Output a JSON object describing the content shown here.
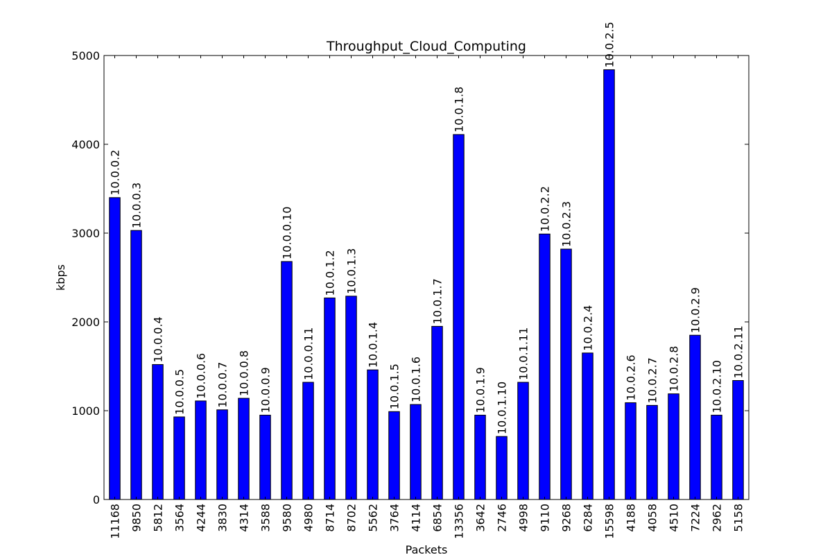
{
  "chart_data": {
    "type": "bar",
    "title": "Throughput_Cloud_Computing",
    "xlabel": "Packets",
    "ylabel": "kbps",
    "ylim": [
      0,
      5000
    ],
    "yticks": [
      0,
      1000,
      2000,
      3000,
      4000,
      5000
    ],
    "grid": false,
    "legend": "none",
    "bar_color": "#0000ff",
    "categories": [
      "11168",
      "9850",
      "5812",
      "3564",
      "4244",
      "3830",
      "4314",
      "3588",
      "9580",
      "4980",
      "8714",
      "8702",
      "5562",
      "3764",
      "4114",
      "6854",
      "13356",
      "3642",
      "2746",
      "4998",
      "9110",
      "9268",
      "6284",
      "15598",
      "4188",
      "4058",
      "4510",
      "7224",
      "2962",
      "5158"
    ],
    "labels": [
      "10.0.0.2",
      "10.0.0.3",
      "10.0.0.4",
      "10.0.0.5",
      "10.0.0.6",
      "10.0.0.7",
      "10.0.0.8",
      "10.0.0.9",
      "10.0.0.10",
      "10.0.0.11",
      "10.0.1.2",
      "10.0.1.3",
      "10.0.1.4",
      "10.0.1.5",
      "10.0.1.6",
      "10.0.1.7",
      "10.0.1.8",
      "10.0.1.9",
      "10.0.1.10",
      "10.0.1.11",
      "10.0.2.2",
      "10.0.2.3",
      "10.0.2.4",
      "10.0.2.5",
      "10.0.2.6",
      "10.0.2.7",
      "10.0.2.8",
      "10.0.2.9",
      "10.0.2.10",
      "10.0.2.11"
    ],
    "values": [
      3400,
      3030,
      1520,
      930,
      1110,
      1010,
      1140,
      950,
      2680,
      1320,
      2270,
      2290,
      1460,
      990,
      1070,
      1950,
      4110,
      950,
      710,
      1320,
      2990,
      2820,
      1650,
      4840,
      1090,
      1060,
      1190,
      1850,
      950,
      1340
    ]
  }
}
